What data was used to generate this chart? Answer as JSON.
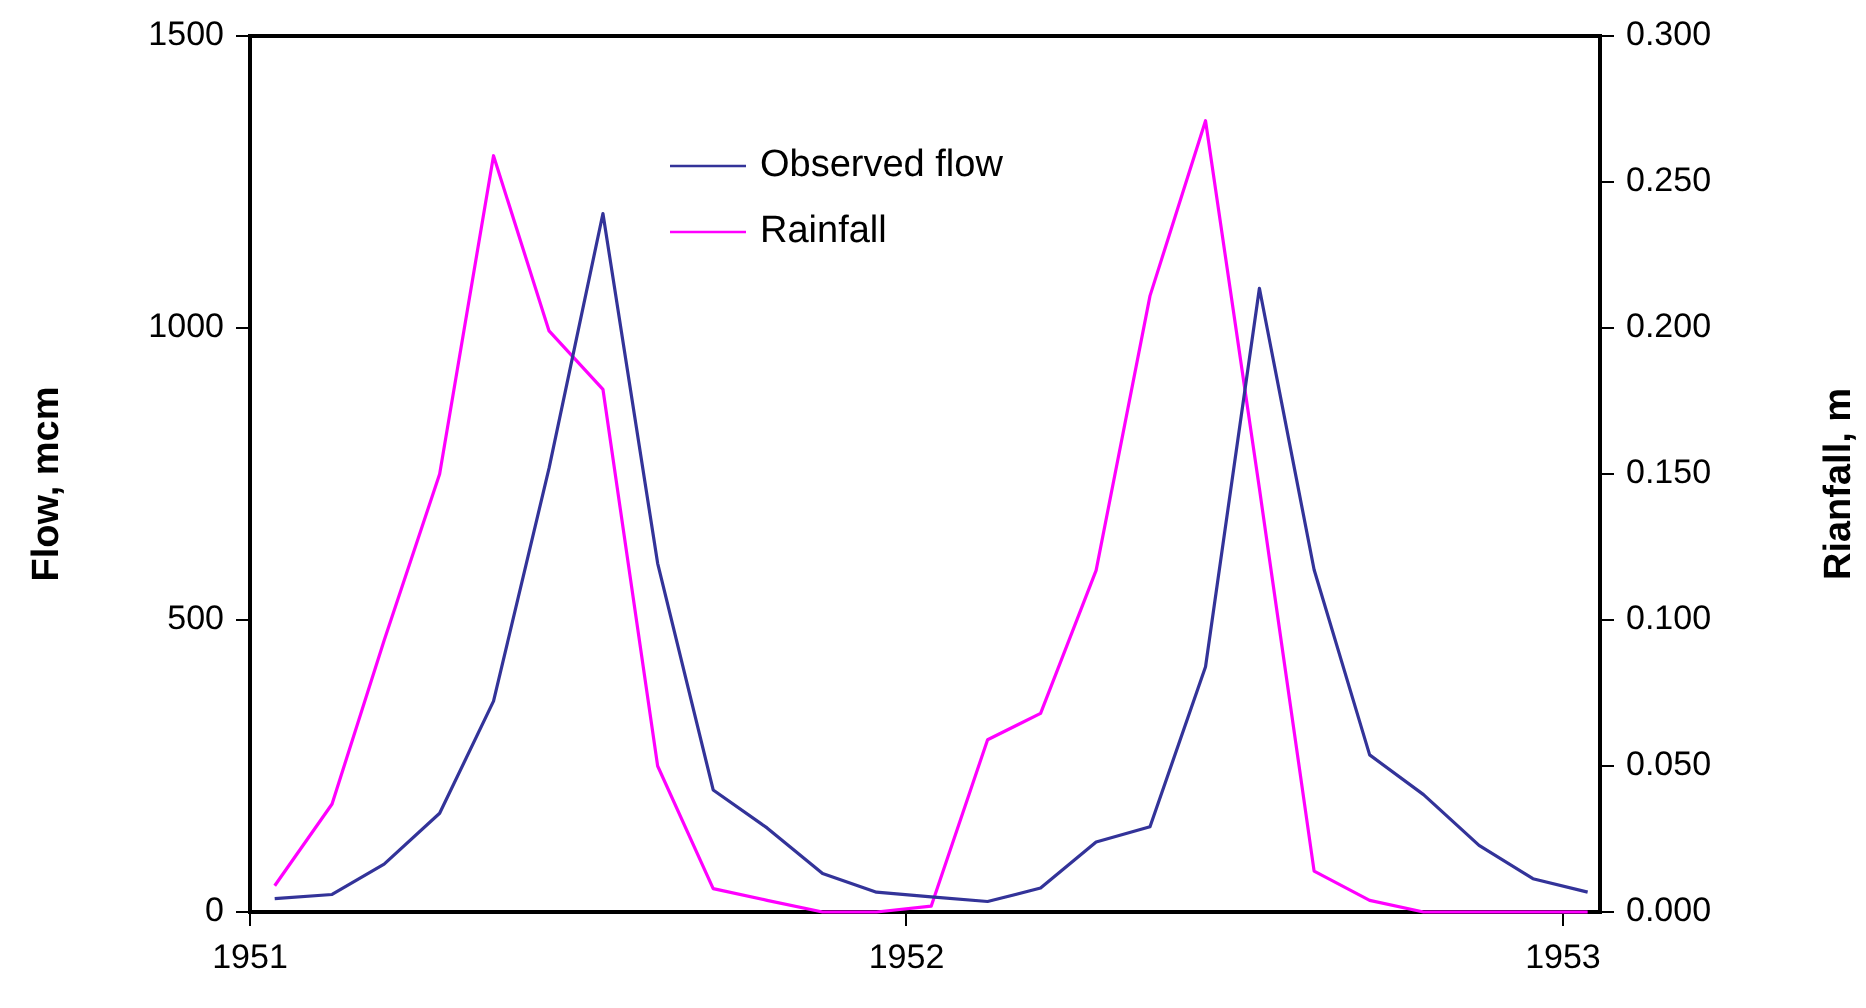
{
  "chart_data": {
    "type": "line",
    "ylabel": "Flow, mcm",
    "y2label": "Rianfall, m",
    "x": [
      "1951-01-15",
      "1951-02-15",
      "1951-03-15",
      "1951-04-15",
      "1951-05-15",
      "1951-06-15",
      "1951-07-15",
      "1951-08-15",
      "1951-09-15",
      "1951-10-15",
      "1951-11-15",
      "1951-12-15",
      "1952-01-15",
      "1952-02-15",
      "1952-03-15",
      "1952-04-15",
      "1952-05-15",
      "1952-06-15",
      "1952-07-15",
      "1952-08-15",
      "1952-09-15",
      "1952-10-15",
      "1952-11-15",
      "1952-12-15",
      "1953-01-15"
    ],
    "series": [
      {
        "name": "Observed flow",
        "color": "#333399",
        "values": [
          23,
          30,
          82,
          169,
          361,
          760,
          1196,
          597,
          209,
          144,
          66,
          34,
          26,
          18,
          41,
          120,
          146,
          420,
          1068,
          586,
          269,
          201,
          114,
          57,
          34
        ]
      },
      {
        "name": "Rainfall",
        "color": "#ff00ff",
        "axis": "y2",
        "values": [
          0.009,
          0.037,
          0.093,
          0.15,
          0.259,
          0.199,
          0.179,
          0.05,
          0.008,
          0.004,
          0,
          0,
          0.002,
          0.059,
          0.068,
          0.117,
          0.211,
          0.271,
          0.145,
          0.014,
          0.004,
          0,
          0,
          0,
          0
        ]
      }
    ],
    "xlim": [
      "1951-01-01",
      "1953-01-22"
    ],
    "xticks": [
      "1951",
      "1952",
      "1953"
    ],
    "ylim": [
      0,
      1500
    ],
    "yticks": [
      0,
      500,
      1000,
      1500
    ],
    "y2lim": [
      0,
      0.3
    ],
    "y2ticks": [
      {
        "value": 0,
        "label": "0.000"
      },
      {
        "value": 0.05,
        "label": "0.050"
      },
      {
        "value": 0.1,
        "label": "0.100"
      },
      {
        "value": 0.15,
        "label": "0.150"
      },
      {
        "value": 0.2,
        "label": "0.200"
      },
      {
        "value": 0.25,
        "label": "0.250"
      },
      {
        "value": 0.3,
        "label": "0.300"
      }
    ],
    "grid": false,
    "legend": "top",
    "marker": "none",
    "line_style": "solid"
  }
}
